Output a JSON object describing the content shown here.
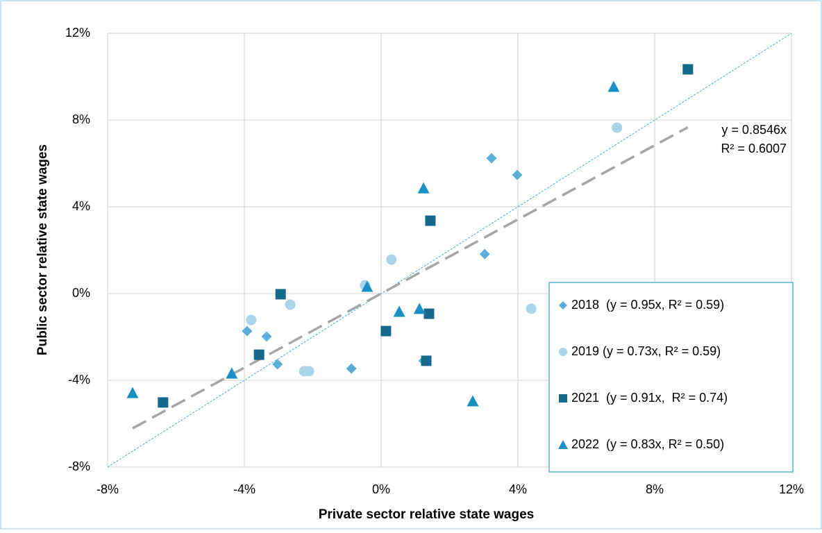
{
  "chart_data": {
    "type": "scatter",
    "x_label": "Private sector relative state wages",
    "y_label": "Public sector relative state wages",
    "xlim": [
      -8,
      12
    ],
    "ylim": [
      -8,
      12
    ],
    "xticks": [
      {
        "value": -8,
        "label": "-8%"
      },
      {
        "value": -4,
        "label": "-4%"
      },
      {
        "value": 0,
        "label": "0%"
      },
      {
        "value": 4,
        "label": "4%"
      },
      {
        "value": 8,
        "label": "8%"
      },
      {
        "value": 12,
        "label": "12%"
      }
    ],
    "yticks": [
      {
        "value": -8,
        "label": "-8%"
      },
      {
        "value": -4,
        "label": "-4%"
      },
      {
        "value": 0,
        "label": "0%"
      },
      {
        "value": 4,
        "label": "4%"
      },
      {
        "value": 8,
        "label": "8%"
      },
      {
        "value": 12,
        "label": "12%"
      }
    ],
    "grid": true,
    "identity_line": true,
    "trendline": {
      "slope": 0.8546,
      "color": "#a6a6a6",
      "label": [
        "y = 0.8546x",
        "R² = 0.6007"
      ]
    },
    "legend": "bottom-right",
    "series": [
      {
        "name": "2018  (y = 0.95x, R² = 0.59)",
        "marker": "diamond",
        "color": "#5aaed8",
        "x": [
          3.23,
          3.98,
          3.03,
          -3.92,
          -3.35,
          -3.03,
          -0.87,
          1.24
        ],
        "values": [
          6.24,
          5.47,
          1.82,
          -1.73,
          -1.98,
          -3.26,
          -3.46,
          -3.1
        ]
      },
      {
        "name": "2019 (y = 0.73x, R² = 0.59)",
        "marker": "circle",
        "color": "#a9d4ea",
        "x": [
          6.9,
          0.3,
          -0.47,
          -2.66,
          -3.8,
          4.39,
          -2.25,
          -2.11
        ],
        "values": [
          7.65,
          1.57,
          0.38,
          -0.51,
          -1.22,
          -0.7,
          -3.58,
          -3.58
        ]
      },
      {
        "name": "2021  (y = 0.91x,  R² = 0.74)",
        "marker": "square",
        "color": "#17698c",
        "x": [
          8.97,
          1.44,
          -2.94,
          1.4,
          0.14,
          1.32,
          -3.57,
          -6.38
        ],
        "values": [
          10.34,
          3.36,
          -0.03,
          -0.93,
          -1.73,
          -3.1,
          -2.82,
          -5.02
        ]
      },
      {
        "name": "2022  (y = 0.83x, R² = 0.50)",
        "marker": "triangle",
        "color": "#1a8fc4",
        "x": [
          6.8,
          1.24,
          -0.41,
          0.53,
          1.12,
          2.68,
          -4.37,
          -7.27
        ],
        "values": [
          9.54,
          4.86,
          0.32,
          -0.83,
          -0.7,
          -4.96,
          -3.68,
          -4.58
        ]
      }
    ]
  }
}
